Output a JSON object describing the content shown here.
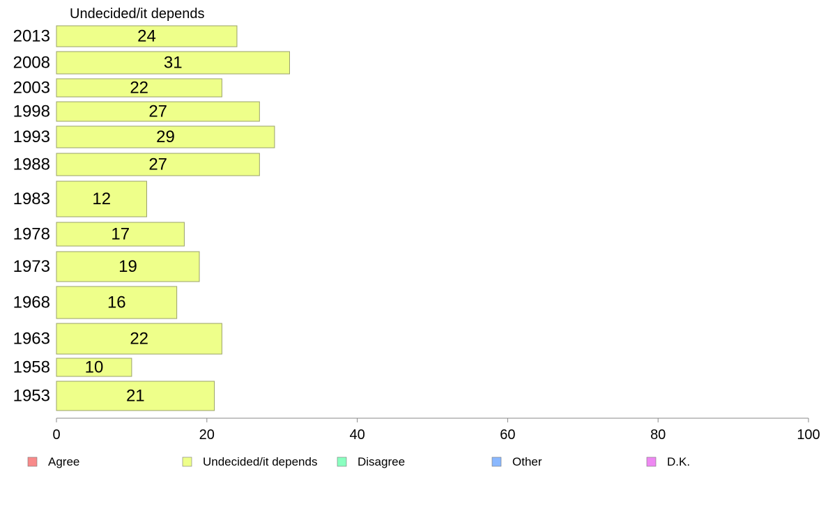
{
  "chart_data": {
    "type": "bar",
    "orientation": "horizontal",
    "title": "Undecided/it depends",
    "categories": [
      "2013",
      "2008",
      "2003",
      "1998",
      "1993",
      "1988",
      "1983",
      "1978",
      "1973",
      "1968",
      "1963",
      "1958",
      "1953"
    ],
    "values": [
      24,
      31,
      22,
      27,
      29,
      27,
      12,
      17,
      19,
      16,
      22,
      10,
      21
    ],
    "xlim": [
      0,
      100
    ],
    "xticks": [
      0,
      20,
      40,
      60,
      80,
      100
    ],
    "grid": false,
    "legend": {
      "placement": "bottom",
      "items": [
        {
          "label": "Agree",
          "color": "#f88a8a"
        },
        {
          "label": "Undecided/it depends",
          "color": "#eeff8a"
        },
        {
          "label": "Disagree",
          "color": "#8affc0"
        },
        {
          "label": "Other",
          "color": "#8ab8ff"
        },
        {
          "label": "D.K.",
          "color": "#ee88f2"
        }
      ]
    },
    "bar_color": "#eeff8a",
    "bar_stroke": "#9aa16a"
  }
}
